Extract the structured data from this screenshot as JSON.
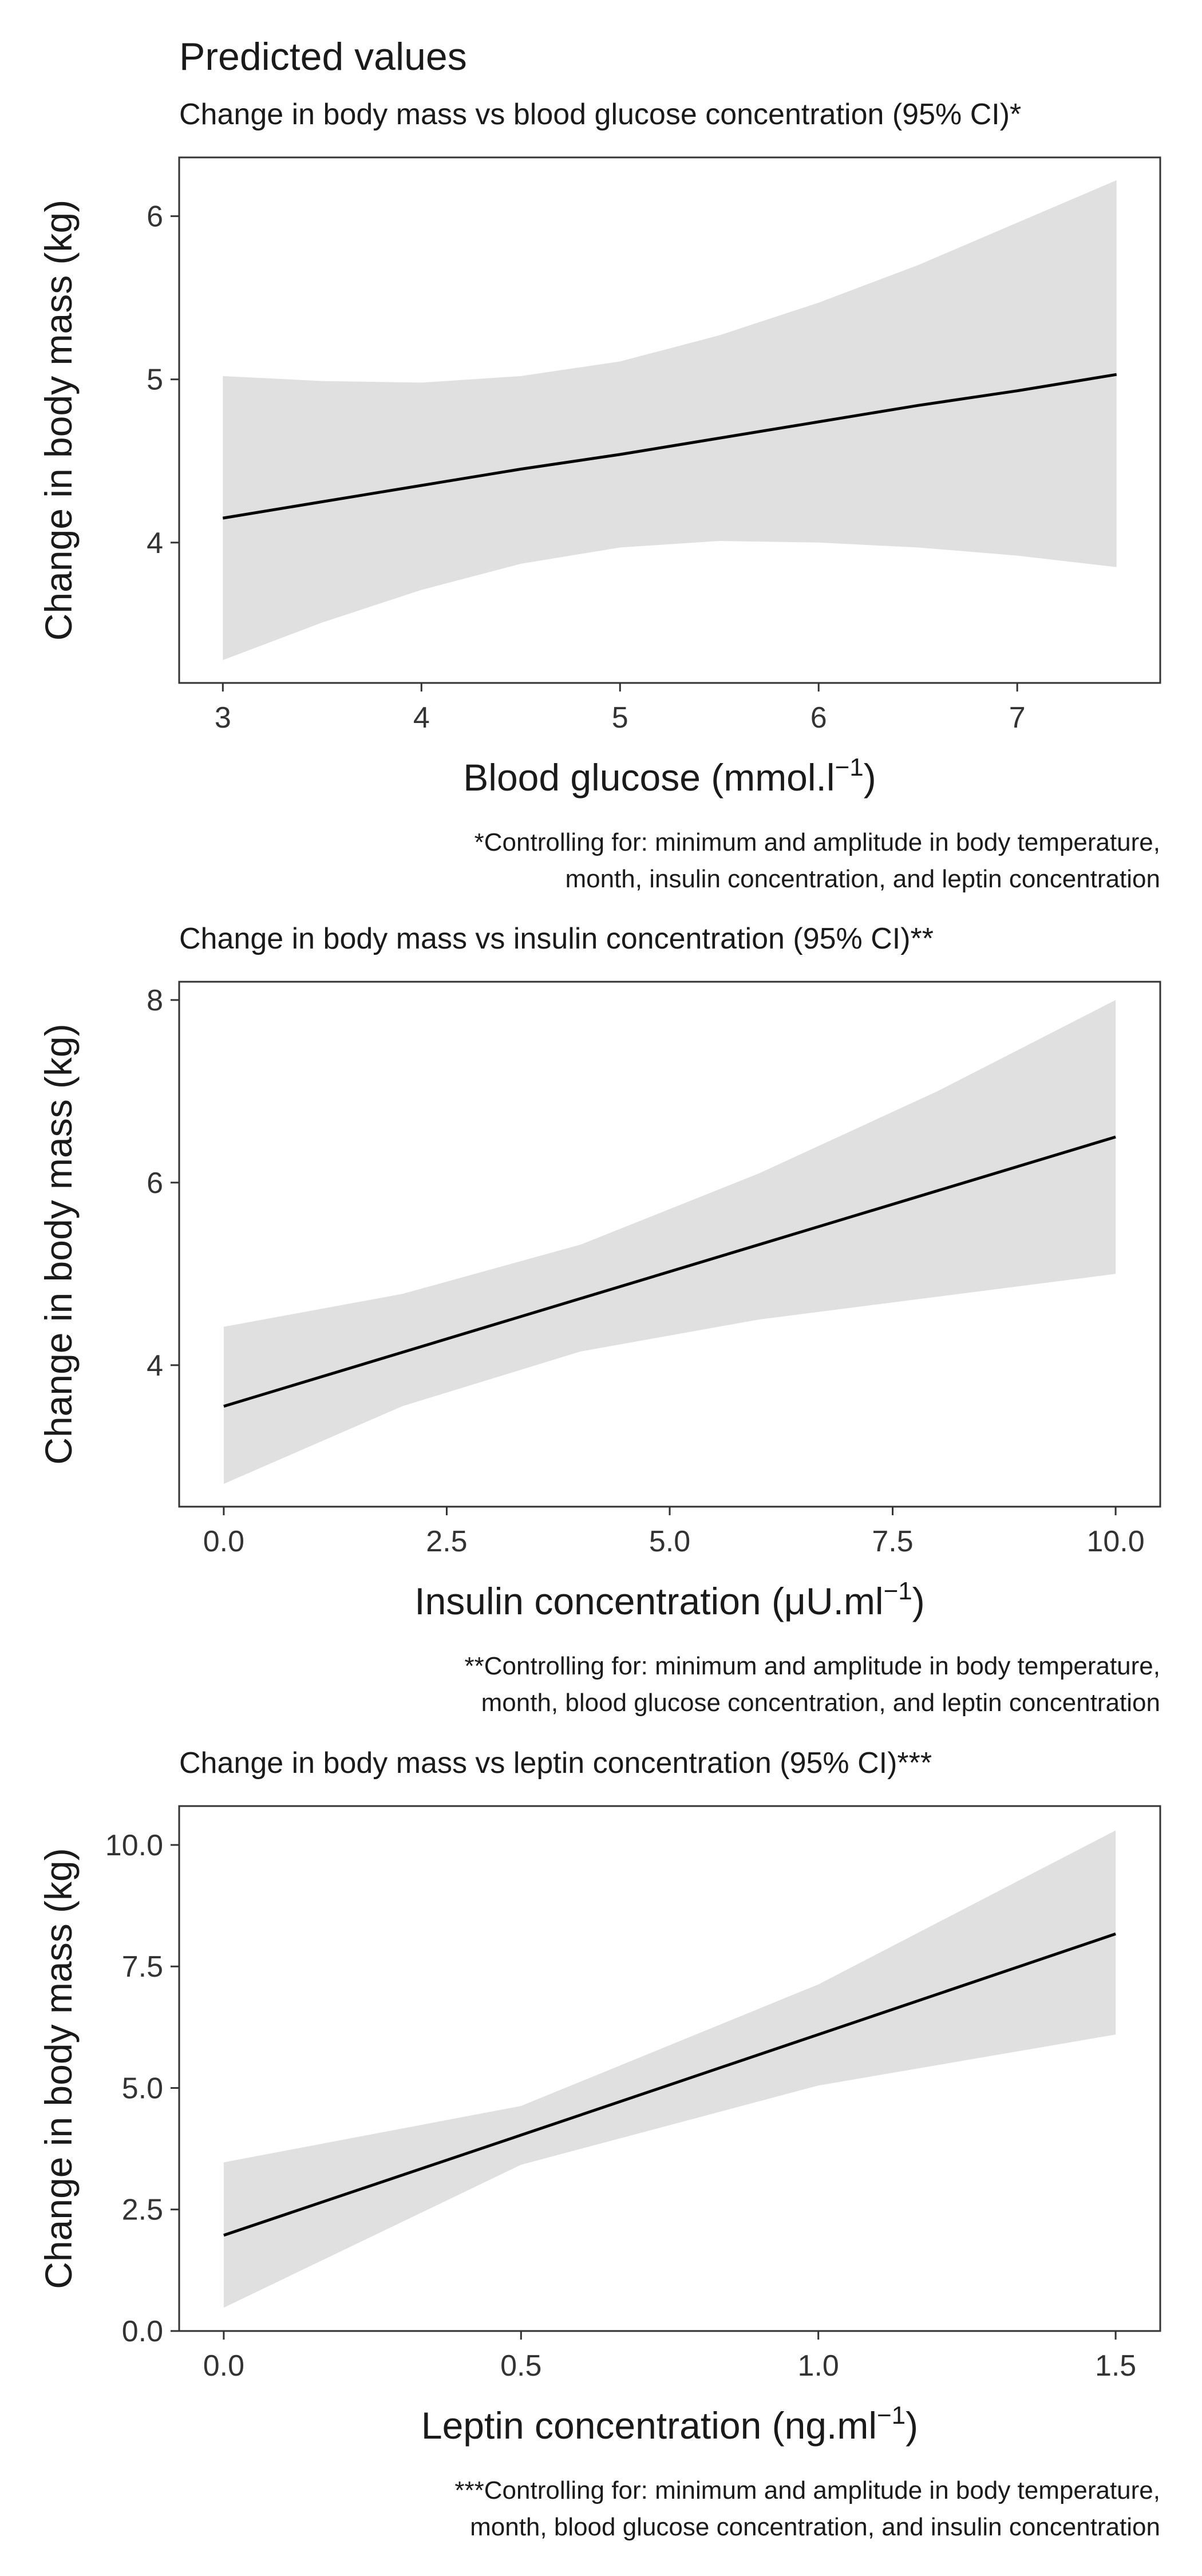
{
  "title": "Predicted values",
  "colors": {
    "band": "#e0e0e0",
    "line": "#000000",
    "frame": "#333333"
  },
  "chart_data": [
    {
      "type": "line",
      "title": "Change in body mass vs blood glucose concentration (95% CI)*",
      "xlabel_main": "Blood glucose (mmol.l",
      "xlabel_sup": "−1",
      "xlabel_end": ")",
      "ylabel": "Change in body mass (kg)",
      "xlim": [
        2.78,
        7.72
      ],
      "ylim": [
        3.14,
        6.36
      ],
      "xticks": [
        3,
        4,
        5,
        6,
        7
      ],
      "xtick_labels": [
        "3",
        "4",
        "5",
        "6",
        "7"
      ],
      "yticks": [
        4,
        5,
        6
      ],
      "ytick_labels": [
        "4",
        "5",
        "6"
      ],
      "x": [
        3,
        3.5,
        4,
        4.5,
        5,
        5.5,
        6,
        6.5,
        7,
        7.5
      ],
      "y": [
        4.15,
        4.25,
        4.35,
        4.45,
        4.54,
        4.64,
        4.74,
        4.84,
        4.93,
        5.03
      ],
      "lower": [
        3.28,
        3.51,
        3.71,
        3.87,
        3.97,
        4.01,
        4.0,
        3.97,
        3.92,
        3.85
      ],
      "upper": [
        5.02,
        4.99,
        4.98,
        5.02,
        5.11,
        5.27,
        5.47,
        5.7,
        5.96,
        6.22
      ],
      "note": [
        "*Controlling for: minimum and amplitude in body temperature,",
        "month, insulin concentration, and leptin concentration"
      ]
    },
    {
      "type": "line",
      "title": "Change in body mass vs insulin concentration (95% CI)**",
      "xlabel_main": "Insulin concentration (μU.ml",
      "xlabel_sup": "−1",
      "xlabel_end": ")",
      "ylabel": "Change in body mass (kg)",
      "xlim": [
        -0.5,
        10.5
      ],
      "ylim": [
        2.45,
        8.2
      ],
      "xticks": [
        0,
        2.5,
        5,
        7.5,
        10
      ],
      "xtick_labels": [
        "0.0",
        "2.5",
        "5.0",
        "7.5",
        "10.0"
      ],
      "yticks": [
        4,
        6,
        8
      ],
      "ytick_labels": [
        "4",
        "6",
        "8"
      ],
      "x": [
        0,
        2,
        4,
        6,
        8,
        10
      ],
      "y": [
        3.55,
        4.14,
        4.73,
        5.32,
        5.91,
        6.5
      ],
      "lower": [
        2.7,
        3.55,
        4.15,
        4.5,
        4.75,
        5.0
      ],
      "upper": [
        4.42,
        4.78,
        5.32,
        6.1,
        7.0,
        8.0
      ],
      "note": [
        "**Controlling for: minimum and amplitude in body temperature,",
        "month, blood glucose concentration, and leptin concentration"
      ]
    },
    {
      "type": "line",
      "title": "Change in body mass vs leptin concentration (95% CI)***",
      "xlabel_main": "Leptin concentration (ng.ml",
      "xlabel_sup": "−1",
      "xlabel_end": ")",
      "ylabel": "Change in body mass (kg)",
      "xlim": [
        -0.075,
        1.575
      ],
      "ylim": [
        0,
        10.8
      ],
      "xticks": [
        0,
        0.5,
        1,
        1.5
      ],
      "xtick_labels": [
        "0.0",
        "0.5",
        "1.0",
        "1.5"
      ],
      "yticks": [
        0,
        2.5,
        5,
        7.5,
        10
      ],
      "ytick_labels": [
        "0.0",
        "2.5",
        "5.0",
        "7.5",
        "10.0"
      ],
      "x": [
        0,
        0.5,
        1,
        1.5
      ],
      "y": [
        1.97,
        4.03,
        6.1,
        8.17
      ],
      "lower": [
        0.48,
        3.42,
        5.05,
        6.1
      ],
      "upper": [
        3.47,
        4.63,
        7.13,
        10.3
      ],
      "note": [
        "***Controlling for: minimum and amplitude in body temperature,",
        "month, blood glucose concentration, and insulin concentration"
      ]
    }
  ]
}
